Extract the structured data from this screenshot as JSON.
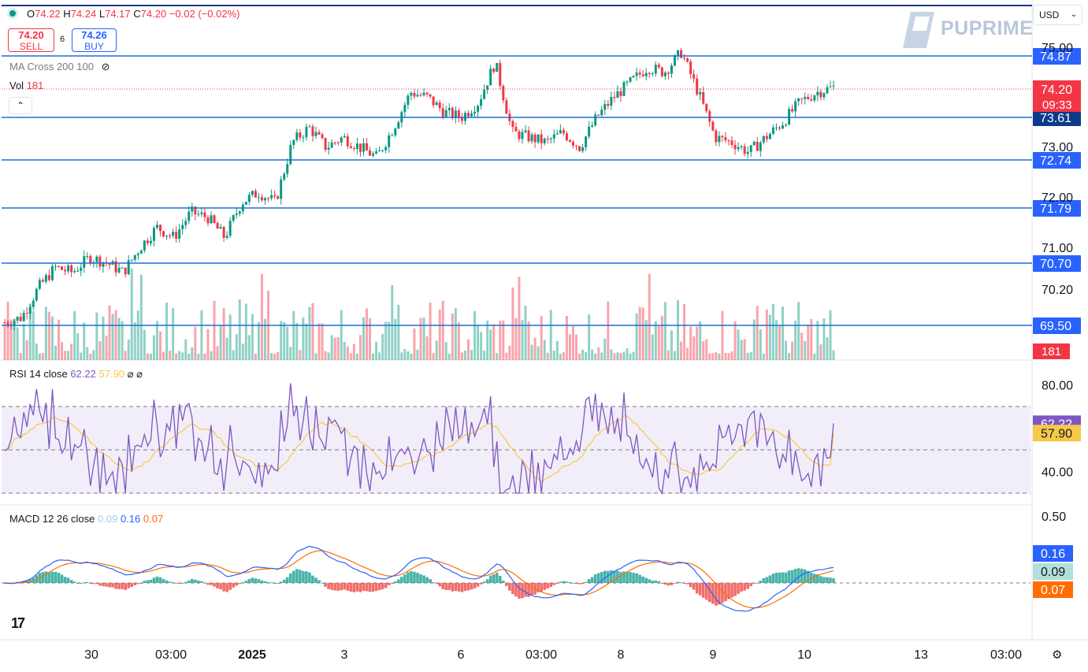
{
  "ticker": {
    "open_label": "O",
    "open": "74.22",
    "high_label": "H",
    "high": "74.24",
    "low_label": "L",
    "low": "74.17",
    "close_label": "C",
    "close": "74.20",
    "change": "−0.02 (−0.02%)"
  },
  "trade": {
    "sell_price": "74.20",
    "sell_label": "SELL",
    "spread": "6",
    "buy_price": "74.26",
    "buy_label": "BUY"
  },
  "indicators": {
    "ma_label": "MA Cross 200 100",
    "vol_label": "Vol",
    "vol_value": "181"
  },
  "rsi": {
    "label": "RSI 14 close",
    "value": "62.22",
    "ma_value": "57.90",
    "symbols": "⌀ ⌀"
  },
  "macd": {
    "label": "MACD 12 26 close",
    "hist": "0.09",
    "macd": "0.16",
    "signal": "0.07"
  },
  "currency": "USD",
  "brand": "PUPRIME",
  "colors": {
    "up": "#089981",
    "down": "#f23645",
    "line": "#1e6fd9",
    "rsi": "#7e57c2",
    "rsi_ma": "#f7c948",
    "macd": "#2962ff",
    "signal": "#ff6d00"
  },
  "price_axis": {
    "ticks": [
      "75.00",
      "73.00",
      "72.00",
      "71.00",
      "70.20"
    ]
  },
  "price_levels": [
    {
      "price": 74.87,
      "label": "74.87"
    },
    {
      "price": 73.61,
      "label": "73.61"
    },
    {
      "price": 72.74,
      "label": "72.74"
    },
    {
      "price": 71.79,
      "label": "71.79"
    },
    {
      "price": 70.7,
      "label": "70.70"
    },
    {
      "price": 69.5,
      "label": "69.50"
    }
  ],
  "last_price": {
    "value": "74.20",
    "countdown": "09:33"
  },
  "volume_tag": "181",
  "rsi_axis": {
    "ticks": [
      "80.00",
      "40.00"
    ]
  },
  "rsi_tags": {
    "rsi": "62.22",
    "ma": "57.90"
  },
  "macd_axis": {
    "ticks": [
      "0.50"
    ]
  },
  "macd_tags": {
    "macd": "0.16",
    "hist": "0.09",
    "signal": "0.07"
  },
  "x_axis": {
    "labels": [
      "30",
      "03:00",
      "2025",
      "3",
      "6",
      "03:00",
      "8",
      "9",
      "10",
      "13",
      "03:00"
    ]
  },
  "chart_data": {
    "type": "candlestick",
    "price_range": [
      69.3,
      75.3
    ],
    "close_path": [
      69.5,
      69.6,
      70.2,
      70.6,
      70.5,
      70.8,
      70.7,
      70.5,
      71.0,
      71.4,
      71.2,
      71.7,
      71.6,
      71.2,
      71.9,
      72.1,
      71.9,
      73.1,
      73.4,
      73.0,
      73.2,
      73.0,
      72.8,
      73.4,
      74.1,
      74.0,
      73.7,
      73.6,
      73.9,
      74.7,
      73.3,
      73.2,
      73.1,
      73.3,
      73.0,
      73.6,
      74.0,
      74.3,
      74.6,
      74.5,
      74.9,
      74.1,
      73.2,
      73.1,
      72.9,
      73.2,
      73.5,
      73.9,
      74.1,
      74.2
    ]
  }
}
